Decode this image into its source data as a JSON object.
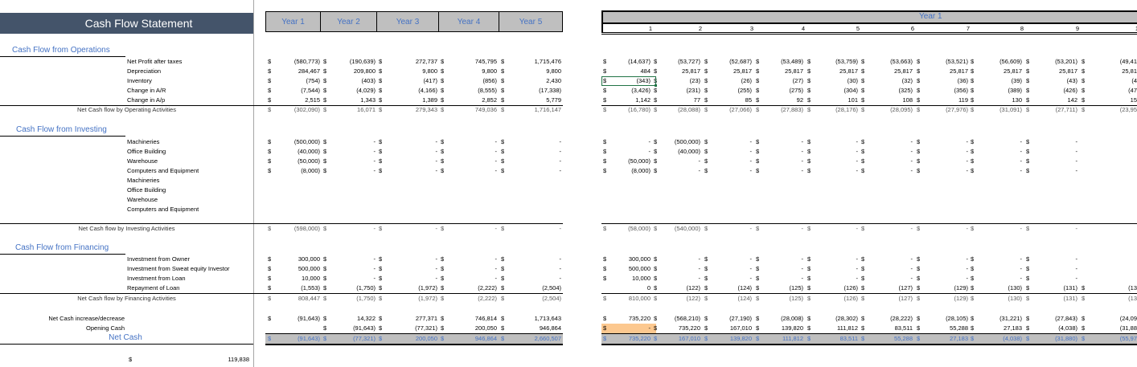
{
  "title": "Cash Flow Statement",
  "year_headers": [
    "Year 1",
    "Year 2",
    "Year 3",
    "Year 4",
    "Year 5"
  ],
  "monthly": {
    "band_title": "Year 1",
    "month_numbers": [
      "1",
      "2",
      "3",
      "4",
      "5",
      "6",
      "7",
      "8",
      "9",
      "1"
    ]
  },
  "currency_symbol": "$",
  "sections": {
    "operations": {
      "title": "Cash Flow from Operations",
      "rows": [
        {
          "label": "Net Profit after taxes",
          "years": [
            "(580,773)",
            "(190,639)",
            "272,737",
            "745,795",
            "1,715,476"
          ],
          "months": [
            "(14,637)",
            "(53,727)",
            "(52,687)",
            "(53,489)",
            "(53,759)",
            "(53,663)",
            "(53,521)",
            "(56,609)",
            "(53,201)",
            "(49,41"
          ]
        },
        {
          "label": "Depreciation",
          "years": [
            "284,467",
            "209,800",
            "9,800",
            "9,800",
            "9,800"
          ],
          "months": [
            "484",
            "25,817",
            "25,817",
            "25,817",
            "25,817",
            "25,817",
            "25,817",
            "25,817",
            "25,817",
            "25,81"
          ]
        },
        {
          "label": "Inventory",
          "years": [
            "(754)",
            "(403)",
            "(417)",
            "(856)",
            "2,430"
          ],
          "months": [
            "(343)",
            "(23)",
            "(26)",
            "(27)",
            "(30)",
            "(32)",
            "(36)",
            "(39)",
            "(43)",
            "(4"
          ]
        },
        {
          "label": "Change in A/R",
          "years": [
            "(7,544)",
            "(4,029)",
            "(4,166)",
            "(8,555)",
            "(17,338)"
          ],
          "months": [
            "(3,426)",
            "(231)",
            "(255)",
            "(275)",
            "(304)",
            "(325)",
            "(356)",
            "(389)",
            "(426)",
            "(47"
          ]
        },
        {
          "label": "Change in A/p",
          "years": [
            "2,515",
            "1,343",
            "1,389",
            "2,852",
            "5,779"
          ],
          "months": [
            "1,142",
            "77",
            "85",
            "92",
            "101",
            "108",
            "119",
            "130",
            "142",
            "15"
          ]
        }
      ],
      "total": {
        "label": "Net Cash flow by Operating Activities",
        "years": [
          "(302,090)",
          "16,071",
          "279,343",
          "749,036",
          "1,716,147"
        ],
        "months": [
          "(16,780)",
          "(28,088)",
          "(27,066)",
          "(27,883)",
          "(28,176)",
          "(28,095)",
          "(27,976)",
          "(31,091)",
          "(27,711)",
          "(23,95"
        ]
      }
    },
    "investing": {
      "title": "Cash Flow from Investing",
      "rows": [
        {
          "label": "Machineries",
          "years": [
            "(500,000)",
            "-",
            "-",
            "-",
            "-"
          ],
          "months": [
            "-",
            "(500,000)",
            "-",
            "-",
            "-",
            "-",
            "-",
            "-",
            "-",
            ""
          ]
        },
        {
          "label": "Office Building",
          "years": [
            "(40,000)",
            "-",
            "-",
            "-",
            "-"
          ],
          "months": [
            "-",
            "(40,000)",
            "-",
            "-",
            "-",
            "-",
            "-",
            "-",
            "-",
            ""
          ]
        },
        {
          "label": "Warehouse",
          "years": [
            "(50,000)",
            "-",
            "-",
            "-",
            "-"
          ],
          "months": [
            "(50,000)",
            "-",
            "-",
            "-",
            "-",
            "-",
            "-",
            "-",
            "-",
            ""
          ]
        },
        {
          "label": "Computers and Equipment",
          "years": [
            "(8,000)",
            "-",
            "-",
            "-",
            "-"
          ],
          "months": [
            "(8,000)",
            "-",
            "-",
            "-",
            "-",
            "-",
            "-",
            "-",
            "-",
            ""
          ]
        },
        {
          "label": "Machineries",
          "years": [],
          "months": []
        },
        {
          "label": "Office Building",
          "years": [],
          "months": []
        },
        {
          "label": "Warehouse",
          "years": [],
          "months": []
        },
        {
          "label": "Computers and Equipment",
          "years": [],
          "months": []
        }
      ],
      "total": {
        "label": "Net Cash flow by Investing Activities",
        "years": [
          "(598,000)",
          "-",
          "-",
          "-",
          "-"
        ],
        "months": [
          "(58,000)",
          "(540,000)",
          "-",
          "-",
          "-",
          "-",
          "-",
          "-",
          "-",
          ""
        ]
      }
    },
    "financing": {
      "title": "Cash Flow from Financing",
      "rows": [
        {
          "label": "Investment from Owner",
          "years": [
            "300,000",
            "-",
            "-",
            "-",
            "-"
          ],
          "months": [
            "300,000",
            "-",
            "-",
            "-",
            "-",
            "-",
            "-",
            "-",
            "-",
            ""
          ]
        },
        {
          "label": "Investment from Sweat equity Investor",
          "years": [
            "500,000",
            "-",
            "-",
            "-",
            "-"
          ],
          "months": [
            "500,000",
            "-",
            "-",
            "-",
            "-",
            "-",
            "-",
            "-",
            "-",
            ""
          ]
        },
        {
          "label": "Investment from Loan",
          "years": [
            "10,000",
            "-",
            "-",
            "-",
            "-"
          ],
          "months": [
            "10,000",
            "-",
            "-",
            "-",
            "-",
            "-",
            "-",
            "-",
            "-",
            ""
          ]
        },
        {
          "label": "Repayment of Loan",
          "years": [
            "(1,553)",
            "(1,750)",
            "(1,972)",
            "(2,222)",
            "(2,504)"
          ],
          "months": [
            "0",
            "(122)",
            "(124)",
            "(125)",
            "(126)",
            "(127)",
            "(129)",
            "(130)",
            "(131)",
            "(13"
          ]
        }
      ],
      "total": {
        "label": "Net Cash flow by Financing Activities",
        "years": [
          "808,447",
          "(1,750)",
          "(1,972)",
          "(2,222)",
          "(2,504)"
        ],
        "months": [
          "810,000",
          "(122)",
          "(124)",
          "(125)",
          "(126)",
          "(127)",
          "(129)",
          "(130)",
          "(131)",
          "(13"
        ]
      }
    }
  },
  "summary": {
    "net_change": {
      "label": "Net Cash increase/decrease",
      "years": [
        "(91,643)",
        "14,322",
        "277,371",
        "746,814",
        "1,713,643"
      ],
      "months": [
        "735,220",
        "(568,210)",
        "(27,190)",
        "(28,008)",
        "(28,302)",
        "(28,222)",
        "(28,105)",
        "(31,221)",
        "(27,843)",
        "(24,09"
      ]
    },
    "opening_cash": {
      "label": "Opening Cash",
      "years": [
        "",
        "(91,643)",
        "(77,321)",
        "200,050",
        "946,864"
      ],
      "months": [
        "-",
        "735,220",
        "167,010",
        "139,820",
        "111,812",
        "83,511",
        "55,288",
        "27,183",
        "(4,038)",
        "(31,88"
      ]
    },
    "net_cash": {
      "label": "Net Cash",
      "years": [
        "(91,643)",
        "(77,321)",
        "200,050",
        "946,864",
        "2,660,507"
      ],
      "months": [
        "735,220",
        "167,010",
        "139,820",
        "111,812",
        "83,511",
        "55,288",
        "27,183",
        "(4,038)",
        "(31,880)",
        "(55,97"
      ]
    }
  },
  "bottom_value": "119,838",
  "colors": {
    "title_bg": "#44546a",
    "header_bg": "#bfbfbf",
    "accent_blue": "#4472c4",
    "highlight_orange": "#fcc88f",
    "selection_green": "#217346"
  }
}
